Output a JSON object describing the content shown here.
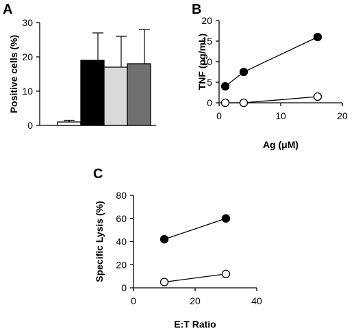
{
  "chart_data": [
    {
      "panel": "A",
      "type": "bar",
      "categories": [
        "",
        "",
        "",
        ""
      ],
      "values": [
        1,
        19,
        17,
        18
      ],
      "errors": [
        0.5,
        8,
        9,
        10
      ],
      "bar_colors": [
        "#ffffff",
        "#000000",
        "#d9d9d9",
        "#707070"
      ],
      "xlabel": "",
      "ylabel": "Positive cells (%)",
      "ylim": [
        0,
        30
      ],
      "yticks": [
        0,
        10,
        20,
        30
      ],
      "grid": false
    },
    {
      "panel": "B",
      "type": "scatter",
      "xlabel": "Ag (μM)",
      "ylabel": "TNF (pg/mL)",
      "xlim": [
        0,
        20
      ],
      "ylim": [
        0,
        20
      ],
      "xticks": [
        0,
        10,
        20
      ],
      "yticks": [
        0,
        5,
        10,
        15,
        20
      ],
      "series": [
        {
          "marker": "filled-circle",
          "x": [
            1,
            4,
            16
          ],
          "y": [
            4,
            7.5,
            16
          ]
        },
        {
          "marker": "open-circle",
          "x": [
            1,
            4,
            16
          ],
          "y": [
            0,
            0,
            1.5
          ]
        }
      ],
      "grid": false
    },
    {
      "panel": "C",
      "type": "scatter",
      "xlabel": "E:T Ratio",
      "ylabel": "Specific Lysis (%)",
      "xlim": [
        0,
        40
      ],
      "ylim": [
        0,
        80
      ],
      "xticks": [
        0,
        20,
        40
      ],
      "yticks": [
        0,
        20,
        40,
        60,
        80
      ],
      "series": [
        {
          "marker": "filled-circle",
          "x": [
            10,
            30
          ],
          "y": [
            42,
            60
          ]
        },
        {
          "marker": "open-circle",
          "x": [
            10,
            30
          ],
          "y": [
            5,
            12
          ]
        }
      ],
      "grid": false
    }
  ]
}
